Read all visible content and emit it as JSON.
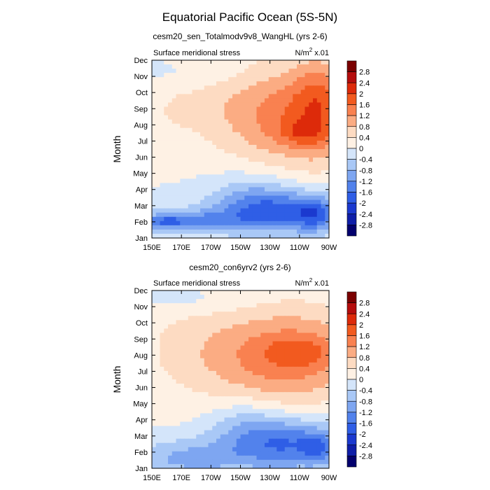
{
  "chart_data": {
    "type": "heatmap",
    "title": "Equatorial Pacific Ocean (5S-5N)",
    "variable": "Surface meridional stress",
    "units_label": "N/m",
    "units_sup": "2",
    "units_scale": " x.01",
    "xlabel": "",
    "ylabel": "Month",
    "x_ticks": [
      "150E",
      "170E",
      "170W",
      "150W",
      "130W",
      "110W",
      "90W"
    ],
    "y_ticks": [
      "Jan",
      "Feb",
      "Mar",
      "Apr",
      "May",
      "Jun",
      "Jul",
      "Aug",
      "Sep",
      "Oct",
      "Nov",
      "Dec"
    ],
    "colorbar": {
      "labels": [
        "2.8",
        "2.4",
        "2",
        "1.6",
        "1.2",
        "0.8",
        "0.4",
        "0",
        "-0.4",
        "-0.8",
        "-1.2",
        "-1.6",
        "-2",
        "-2.4",
        "-2.8"
      ],
      "colors": [
        "#7a0000",
        "#b50d0d",
        "#dd2a0a",
        "#f25a1f",
        "#f98150",
        "#fbac83",
        "#fddbc2",
        "#fef1e4",
        "#d4e5fa",
        "#a9c8f6",
        "#7ea6f1",
        "#5282ec",
        "#2f5ee6",
        "#1b39cf",
        "#0f1ea8",
        "#03006e"
      ]
    },
    "panels": [
      {
        "subtitle": "cesm20_sen_Totalmodv9v8_WangHL (yrs 2-6)",
        "blobs": [
          {
            "lon": 248,
            "mon": 8.6,
            "rl": 52,
            "rm": 3.2,
            "v": 1.5
          },
          {
            "lon": 252,
            "mon": 7.5,
            "rl": 16,
            "rm": 0.8,
            "v": 0.6
          },
          {
            "lon": 262,
            "mon": 9.5,
            "rl": 16,
            "rm": 2.8,
            "v": 0.7
          },
          {
            "lon": 180,
            "mon": 9.4,
            "rl": 38,
            "rm": 2.2,
            "v": 0.25
          },
          {
            "lon": 160,
            "mon": 8.5,
            "rl": 18,
            "rm": 2.0,
            "v": 0.15
          },
          {
            "lon": 175,
            "mon": 11.1,
            "rl": 45,
            "rm": 0.9,
            "v": -0.2
          },
          {
            "lon": 240,
            "mon": 2.6,
            "rl": 45,
            "rm": 1.3,
            "v": -1.6
          },
          {
            "lon": 260,
            "mon": 2.4,
            "rl": 12,
            "rm": 1.0,
            "v": -0.8
          },
          {
            "lon": 170,
            "mon": 2.0,
            "rl": 40,
            "rm": 0.7,
            "v": -1.3
          },
          {
            "lon": 160,
            "mon": 2.0,
            "rl": 10,
            "rm": 0.3,
            "v": -0.6
          },
          {
            "lon": 218,
            "mon": 3.6,
            "rl": 28,
            "rm": 1.6,
            "v": -0.6
          }
        ]
      },
      {
        "subtitle": "cesm20_con6yrv2 (yrs 2-6)",
        "blobs": [
          {
            "lon": 248,
            "mon": 8.0,
            "rl": 50,
            "rm": 3.0,
            "v": 1.3
          },
          {
            "lon": 252,
            "mon": 8.2,
            "rl": 25,
            "rm": 0.9,
            "v": 0.5
          },
          {
            "lon": 220,
            "mon": 7.5,
            "rl": 40,
            "rm": 3.0,
            "v": 0.3
          },
          {
            "lon": 175,
            "mon": 8.5,
            "rl": 40,
            "rm": 3.4,
            "v": 0.45
          },
          {
            "lon": 175,
            "mon": 11.4,
            "rl": 40,
            "rm": 0.9,
            "v": -0.3
          },
          {
            "lon": 242,
            "mon": 2.5,
            "rl": 40,
            "rm": 1.6,
            "v": -1.6
          },
          {
            "lon": 262,
            "mon": 2.2,
            "rl": 10,
            "rm": 0.9,
            "v": -0.7
          },
          {
            "lon": 175,
            "mon": 1.6,
            "rl": 40,
            "rm": 1.2,
            "v": -0.9
          },
          {
            "lon": 212,
            "mon": 3.8,
            "rl": 25,
            "rm": 1.6,
            "v": -0.5
          }
        ]
      }
    ]
  }
}
